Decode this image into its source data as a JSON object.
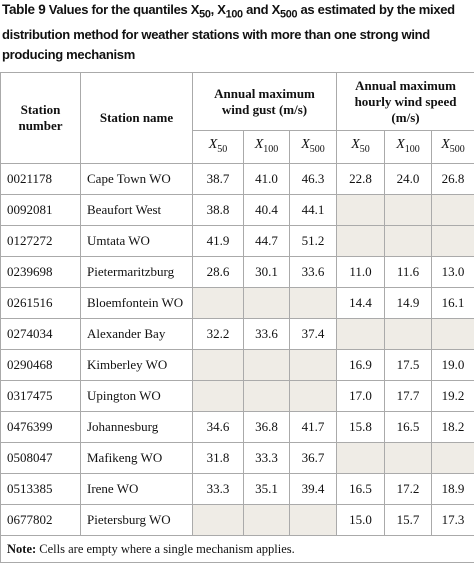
{
  "caption": {
    "label": "Table 9",
    "parts": [
      "Values for the quantiles ",
      "X",
      "50",
      ", ",
      "X",
      "100",
      " and ",
      "X",
      "500",
      " as estimated by the mixed distribution method for weather stations with more than one strong wind producing mechanism"
    ]
  },
  "table": {
    "headers": {
      "station_number": "Station number",
      "station_name": "Station name",
      "groups": [
        "Annual maximum wind gust (m/s)",
        "Annual maximum hourly wind speed (m/s)"
      ],
      "quantiles": [
        {
          "symbol": "X",
          "sub": "50"
        },
        {
          "symbol": "X",
          "sub": "100"
        },
        {
          "symbol": "X",
          "sub": "500"
        },
        {
          "symbol": "X",
          "sub": "50"
        },
        {
          "symbol": "X",
          "sub": "100"
        },
        {
          "symbol": "X",
          "sub": "500"
        }
      ]
    },
    "rows": [
      [
        "0021178",
        "Cape Town WO",
        "38.7",
        "41.0",
        "46.3",
        "22.8",
        "24.0",
        "26.8"
      ],
      [
        "0092081",
        "Beaufort West",
        "38.8",
        "40.4",
        "44.1",
        null,
        null,
        null
      ],
      [
        "0127272",
        "Umtata WO",
        "41.9",
        "44.7",
        "51.2",
        null,
        null,
        null
      ],
      [
        "0239698",
        "Pietermaritzburg",
        "28.6",
        "30.1",
        "33.6",
        "11.0",
        "11.6",
        "13.0"
      ],
      [
        "0261516",
        "Bloemfontein WO",
        null,
        null,
        null,
        "14.4",
        "14.9",
        "16.1"
      ],
      [
        "0274034",
        "Alexander Bay",
        "32.2",
        "33.6",
        "37.4",
        null,
        null,
        null
      ],
      [
        "0290468",
        "Kimberley WO",
        null,
        null,
        null,
        "16.9",
        "17.5",
        "19.0"
      ],
      [
        "0317475",
        "Upington WO",
        null,
        null,
        null,
        "17.0",
        "17.7",
        "19.2"
      ],
      [
        "0476399",
        "Johannesburg",
        "34.6",
        "36.8",
        "41.7",
        "15.8",
        "16.5",
        "18.2"
      ],
      [
        "0508047",
        "Mafikeng WO",
        "31.8",
        "33.3",
        "36.7",
        null,
        null,
        null
      ],
      [
        "0513385",
        "Irene WO",
        "33.3",
        "35.1",
        "39.4",
        "16.5",
        "17.2",
        "18.9"
      ],
      [
        "0677802",
        "Pietersburg WO",
        null,
        null,
        null,
        "15.0",
        "15.7",
        "17.3"
      ]
    ]
  },
  "note": {
    "label": "Note:",
    "text": "Cells are empty where a single mechanism applies."
  }
}
